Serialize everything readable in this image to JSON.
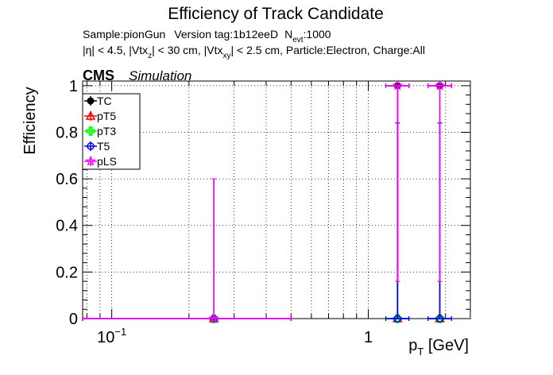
{
  "chart_data": {
    "type": "scatter",
    "title": "Efficiency of Track Candidate",
    "subtitle_line1": {
      "sample": "Sample:pionGun",
      "version": "Version tag:1b12eeD",
      "nevt_prefix": "N",
      "nevt_sub": "evt",
      "nevt_value": ":1000"
    },
    "subtitle_line2": {
      "eta": "|η| < 4.5, |Vtx",
      "z_sub": "z",
      "mid": "| < 30 cm, |Vtx",
      "xy_sub": "xy",
      "rest": "| < 2.5 cm, Particle:Electron, Charge:All"
    },
    "cms_label": "CMS",
    "simulation_label": "Simulation",
    "ylabel": "Efficiency",
    "xlabel_main": "p",
    "xlabel_sub": "T",
    "xlabel_unit": " [GeV]",
    "x_scale": "log",
    "xlim": [
      0.077,
      2.5
    ],
    "ylim": [
      0,
      1.02
    ],
    "grid": true,
    "legend_position": "top-left",
    "x_ticks": [
      {
        "value": 0.1,
        "base": "10",
        "exp": "−1"
      },
      {
        "value": 1,
        "base": "1",
        "exp": ""
      }
    ],
    "y_ticks": [
      {
        "value": 0,
        "label": "0"
      },
      {
        "value": 0.2,
        "label": "0.2"
      },
      {
        "value": 0.4,
        "label": "0.4"
      },
      {
        "value": 0.6,
        "label": "0.6"
      },
      {
        "value": 0.8,
        "label": "0.8"
      },
      {
        "value": 1,
        "label": "1"
      }
    ],
    "series": [
      {
        "name": "TC",
        "color": "#000000",
        "marker": "filled-circle",
        "points": [
          {
            "x": 0.25,
            "y": 0,
            "xlow": 0.077,
            "xhigh": 0.5,
            "ylow": 0,
            "yhigh": 0
          },
          {
            "x": 1.3,
            "y": 1,
            "xlow": 1.17,
            "xhigh": 1.44,
            "ylow": 1,
            "yhigh": 1
          },
          {
            "x": 1.9,
            "y": 1,
            "xlow": 1.71,
            "xhigh": 2.11,
            "ylow": 1,
            "yhigh": 1
          }
        ]
      },
      {
        "name": "pT5",
        "color": "#ff0000",
        "marker": "open-triangle",
        "points": [
          {
            "x": 0.25,
            "y": 0,
            "xlow": 0.077,
            "xhigh": 0.5,
            "ylow": 0,
            "yhigh": 0
          },
          {
            "x": 1.3,
            "y": 0,
            "xlow": 1.17,
            "xhigh": 1.44,
            "ylow": 0,
            "yhigh": 0
          },
          {
            "x": 1.9,
            "y": 0,
            "xlow": 1.71,
            "xhigh": 2.11,
            "ylow": 0,
            "yhigh": 0
          }
        ]
      },
      {
        "name": "pT3",
        "color": "#00ff00",
        "marker": "open-cross",
        "points": [
          {
            "x": 0.25,
            "y": 0,
            "xlow": 0.077,
            "xhigh": 0.5,
            "ylow": 0,
            "yhigh": 0
          },
          {
            "x": 1.3,
            "y": 0,
            "xlow": 1.17,
            "xhigh": 1.44,
            "ylow": 0,
            "yhigh": 0
          },
          {
            "x": 1.9,
            "y": 0,
            "xlow": 1.71,
            "xhigh": 2.11,
            "ylow": 0,
            "yhigh": 0
          }
        ]
      },
      {
        "name": "T5",
        "color": "#0000ff",
        "marker": "open-circle",
        "points": [
          {
            "x": 0.25,
            "y": 0,
            "xlow": 0.077,
            "xhigh": 0.5,
            "ylow": 0,
            "yhigh": 0
          },
          {
            "x": 1.3,
            "y": 0,
            "xlow": 1.17,
            "xhigh": 1.44,
            "ylow": 0,
            "yhigh": 0.84
          },
          {
            "x": 1.9,
            "y": 0,
            "xlow": 1.71,
            "xhigh": 2.11,
            "ylow": 0,
            "yhigh": 0.84
          }
        ]
      },
      {
        "name": "pLS",
        "color": "#ff00ff",
        "marker": "open-star",
        "points": [
          {
            "x": 0.25,
            "y": 0,
            "xlow": 0.077,
            "xhigh": 0.5,
            "ylow": 0,
            "yhigh": 0.6
          },
          {
            "x": 1.3,
            "y": 1,
            "xlow": 1.17,
            "xhigh": 1.44,
            "ylow": 0.16,
            "yhigh": 1
          },
          {
            "x": 1.9,
            "y": 1,
            "xlow": 1.71,
            "xhigh": 2.11,
            "ylow": 0.16,
            "yhigh": 1
          }
        ]
      }
    ]
  }
}
